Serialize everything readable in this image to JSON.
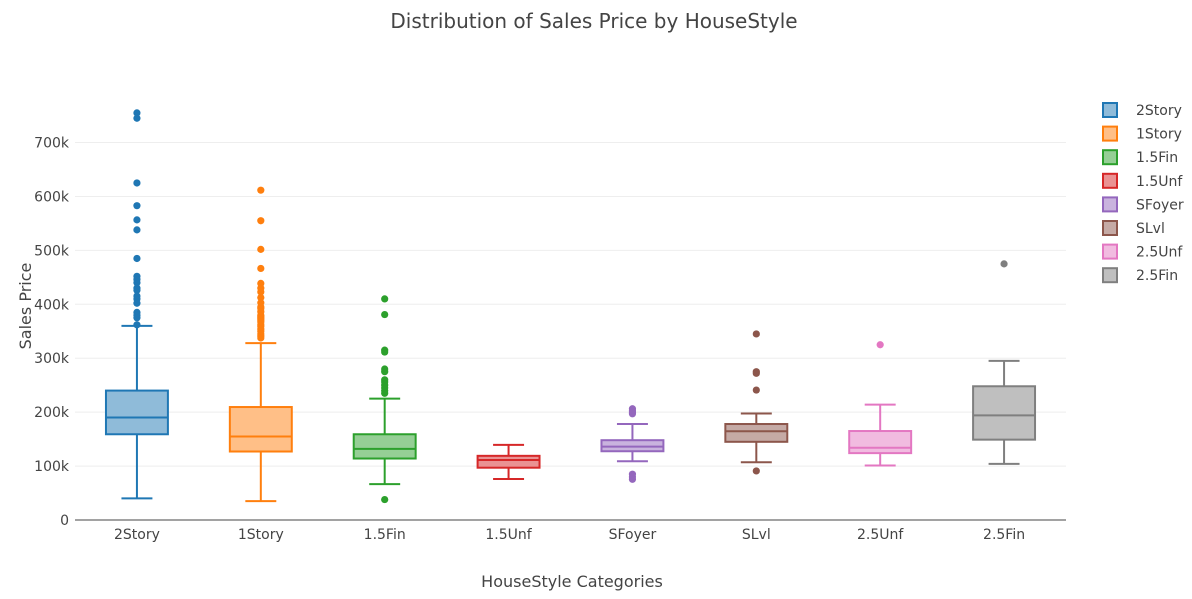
{
  "chart_data": {
    "type": "box",
    "title": "Distribution of Sales Price by HouseStyle",
    "xlabel": "HouseStyle Categories",
    "ylabel": "Sales Price",
    "ylim": [
      0,
      790000
    ],
    "yticks": [
      0,
      100000,
      200000,
      300000,
      400000,
      500000,
      600000,
      700000
    ],
    "ytick_labels": [
      "0",
      "100k",
      "200k",
      "300k",
      "400k",
      "500k",
      "600k",
      "700k"
    ],
    "grid": true,
    "legend_placement": "top-right",
    "categories": [
      "2Story",
      "1Story",
      "1.5Fin",
      "1.5Unf",
      "SFoyer",
      "SLvl",
      "2.5Unf",
      "2.5Fin"
    ],
    "series": [
      {
        "name": "2Story",
        "color": "#1f77b4",
        "fill": "#8fbbd9",
        "lower_whisker": 40000,
        "q1": 159000,
        "median": 190000,
        "q3": 240000,
        "upper_whisker": 360000,
        "outliers": [
          755000,
          745000,
          625000,
          582900,
          556581,
          538000,
          485000,
          451950,
          446261,
          440000,
          430000,
          426000,
          415298,
          410000,
          402000,
          385000,
          380000,
          375000,
          362000
        ]
      },
      {
        "name": "1Story",
        "color": "#ff7f0e",
        "fill": "#ffbf87",
        "lower_whisker": 34900,
        "q1": 127000,
        "median": 154750,
        "q3": 209500,
        "upper_whisker": 328000,
        "outliers": [
          611657,
          555000,
          501837,
          466500,
          438780,
          430000,
          423000,
          412500,
          402861,
          395192,
          392500,
          386250,
          380000,
          377500,
          375000,
          372500,
          369900,
          367294,
          361919,
          359100,
          354000,
          350000,
          345000,
          341000,
          337500
        ]
      },
      {
        "name": "1.5Fin",
        "color": "#2ca02c",
        "fill": "#95cf95",
        "lower_whisker": 66500,
        "q1": 114000,
        "median": 132000,
        "q3": 159000,
        "upper_whisker": 225000,
        "outliers": [
          410000,
          381000,
          315000,
          311500,
          280000,
          275000,
          260000,
          256000,
          250000,
          245000,
          240000,
          235000,
          37900
        ]
      },
      {
        "name": "1.5Unf",
        "color": "#d62728",
        "fill": "#ea9293",
        "lower_whisker": 76000,
        "q1": 97000,
        "median": 111250,
        "q3": 119000,
        "upper_whisker": 139400,
        "outliers": []
      },
      {
        "name": "SFoyer",
        "color": "#9467bd",
        "fill": "#c9b3de",
        "lower_whisker": 109000,
        "q1": 127500,
        "median": 135960,
        "q3": 148000,
        "upper_whisker": 178000,
        "outliers": [
          206300,
          203000,
          200000,
          197000,
          85000,
          80000,
          75500
        ]
      },
      {
        "name": "SLvl",
        "color": "#8c564b",
        "fill": "#c5aaa5",
        "lower_whisker": 107000,
        "q1": 145000,
        "median": 164500,
        "q3": 178000,
        "upper_whisker": 197500,
        "outliers": [
          345000,
          275000,
          272000,
          241000,
          91000
        ]
      },
      {
        "name": "2.5Unf",
        "color": "#e377c2",
        "fill": "#f1bbe0",
        "lower_whisker": 101000,
        "q1": 124000,
        "median": 133900,
        "q3": 165000,
        "upper_whisker": 214000,
        "outliers": [
          325000
        ]
      },
      {
        "name": "2.5Fin",
        "color": "#7f7f7f",
        "fill": "#bfbfbf",
        "lower_whisker": 104000,
        "q1": 149000,
        "median": 194000,
        "q3": 248000,
        "upper_whisker": 295000,
        "outliers": [
          475000
        ]
      }
    ]
  }
}
